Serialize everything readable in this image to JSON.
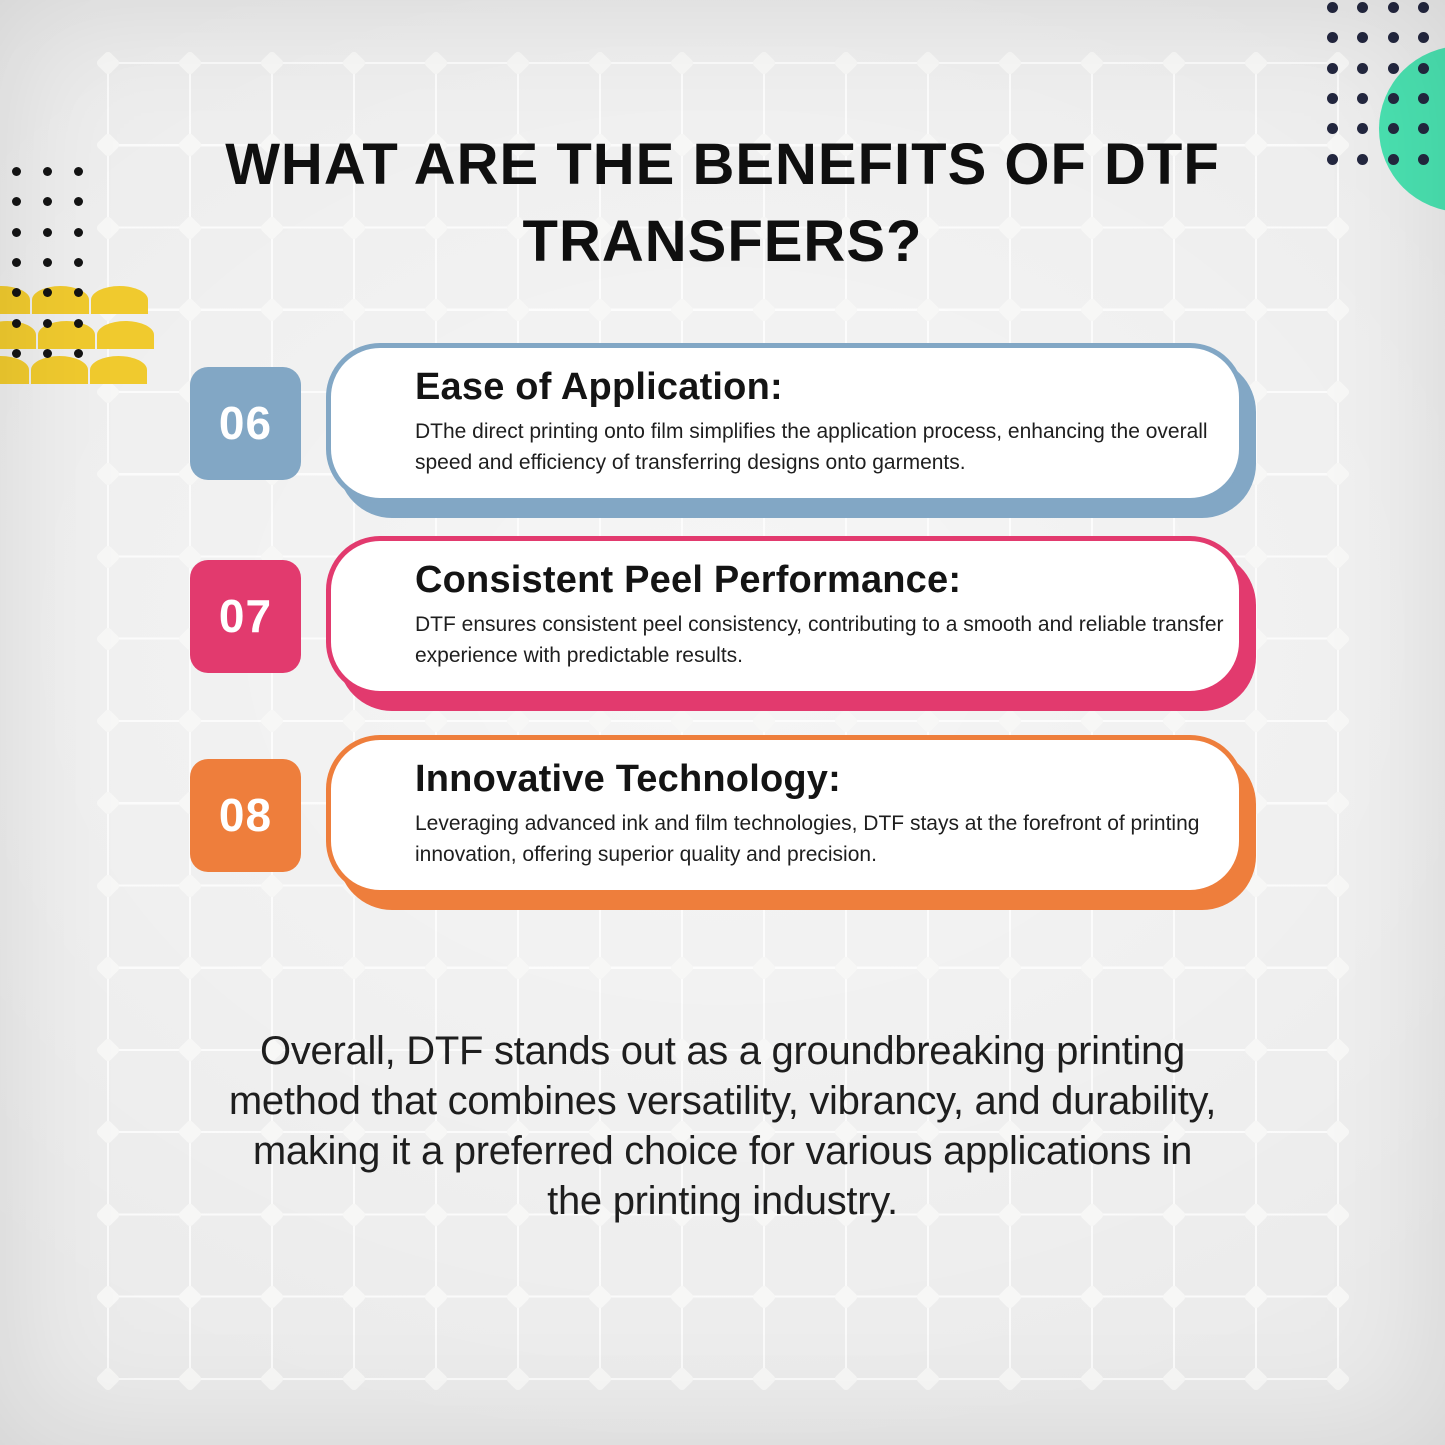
{
  "title": {
    "text": "WHAT ARE THE BENEFITS OF DTF TRANSFERS?"
  },
  "cards": [
    {
      "number": "06",
      "accent": "#82a7c5",
      "heading": "Ease of Application:",
      "body": "DThe direct printing onto film simplifies the application process, enhancing the overall speed and efficiency of transferring designs onto garments."
    },
    {
      "number": "07",
      "accent": "#e23a6e",
      "heading": "Consistent Peel Performance:",
      "body": "DTF ensures consistent peel consistency, contributing to a smooth and reliable transfer experience with predictable results."
    },
    {
      "number": "08",
      "accent": "#ee7e3c",
      "heading": "Innovative Technology:",
      "body": "Leveraging advanced ink and film technologies, DTF stays at the forefront of printing innovation, offering superior quality and precision."
    }
  ],
  "conclusion": {
    "lines": [
      "Overall, DTF stands out as a groundbreaking printing",
      "method that combines versatility, vibrancy, and durability,",
      "making it a preferred choice for various applications in",
      "the printing industry."
    ]
  },
  "palette": {
    "background": "#ebebeb",
    "grid_line": "#ffffff",
    "title_text": "#0f0f0f",
    "body_text": "#1e1e1e",
    "yellow": "#f0ca2e",
    "teal": "#4ae1b0",
    "navy_dots": "#23273f",
    "black_dots": "#141414"
  }
}
